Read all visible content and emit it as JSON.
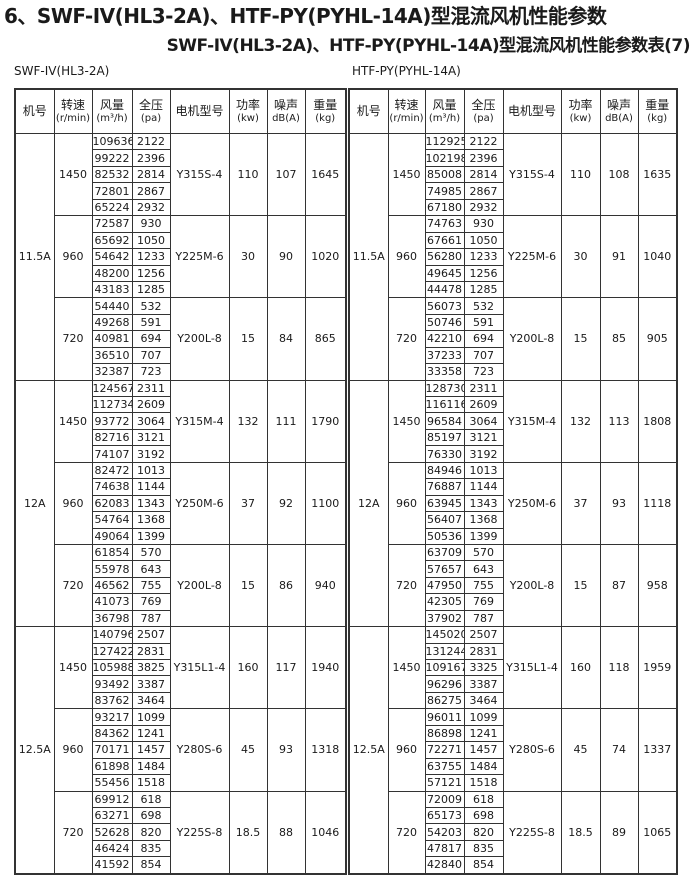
{
  "title": "6、SWF-IV(HL3-2A)、HTF-PY(PYHL-14A)型混流风机性能参数",
  "subtitle": "SWF-IV(HL3-2A)、HTF-PY(PYHL-14A)型混流风机性能参数表(7)",
  "headers": [
    {
      "l1": "机号",
      "l2": ""
    },
    {
      "l1": "转速",
      "l2": "(r/min)"
    },
    {
      "l1": "风量",
      "l2": "(m³/h)"
    },
    {
      "l1": "全压",
      "l2": "(pa)"
    },
    {
      "l1": "电机型号",
      "l2": ""
    },
    {
      "l1": "功率",
      "l2": "(kw)"
    },
    {
      "l1": "噪声",
      "l2": "dB(A)"
    },
    {
      "l1": "重量",
      "l2": "(kg)"
    }
  ],
  "tables": [
    {
      "label": "SWF-IV(HL3-2A)",
      "groups": [
        {
          "fan_no": "11.5A",
          "speeds": [
            {
              "rpm": "1450",
              "motor": "Y315S-4",
              "power": "110",
              "noise": "107",
              "weight": "1645",
              "points": [
                [
                  "109636",
                  "2122"
                ],
                [
                  "99222",
                  "2396"
                ],
                [
                  "82532",
                  "2814"
                ],
                [
                  "72801",
                  "2867"
                ],
                [
                  "65224",
                  "2932"
                ]
              ]
            },
            {
              "rpm": "960",
              "motor": "Y225M-6",
              "power": "30",
              "noise": "90",
              "weight": "1020",
              "points": [
                [
                  "72587",
                  "930"
                ],
                [
                  "65692",
                  "1050"
                ],
                [
                  "54642",
                  "1233"
                ],
                [
                  "48200",
                  "1256"
                ],
                [
                  "43183",
                  "1285"
                ]
              ]
            },
            {
              "rpm": "720",
              "motor": "Y200L-8",
              "power": "15",
              "noise": "84",
              "weight": "865",
              "points": [
                [
                  "54440",
                  "532"
                ],
                [
                  "49268",
                  "591"
                ],
                [
                  "40981",
                  "694"
                ],
                [
                  "36510",
                  "707"
                ],
                [
                  "32387",
                  "723"
                ]
              ]
            }
          ]
        },
        {
          "fan_no": "12A",
          "speeds": [
            {
              "rpm": "1450",
              "motor": "Y315M-4",
              "power": "132",
              "noise": "111",
              "weight": "1790",
              "points": [
                [
                  "124567",
                  "2311"
                ],
                [
                  "112734",
                  "2609"
                ],
                [
                  "93772",
                  "3064"
                ],
                [
                  "82716",
                  "3121"
                ],
                [
                  "74107",
                  "3192"
                ]
              ]
            },
            {
              "rpm": "960",
              "motor": "Y250M-6",
              "power": "37",
              "noise": "92",
              "weight": "1100",
              "points": [
                [
                  "82472",
                  "1013"
                ],
                [
                  "74638",
                  "1144"
                ],
                [
                  "62083",
                  "1343"
                ],
                [
                  "54764",
                  "1368"
                ],
                [
                  "49064",
                  "1399"
                ]
              ]
            },
            {
              "rpm": "720",
              "motor": "Y200L-8",
              "power": "15",
              "noise": "86",
              "weight": "940",
              "points": [
                [
                  "61854",
                  "570"
                ],
                [
                  "55978",
                  "643"
                ],
                [
                  "46562",
                  "755"
                ],
                [
                  "41073",
                  "769"
                ],
                [
                  "36798",
                  "787"
                ]
              ]
            }
          ]
        },
        {
          "fan_no": "12.5A",
          "speeds": [
            {
              "rpm": "1450",
              "motor": "Y315L1-4",
              "power": "160",
              "noise": "117",
              "weight": "1940",
              "points": [
                [
                  "140796",
                  "2507"
                ],
                [
                  "127422",
                  "2831"
                ],
                [
                  "105988",
                  "3825"
                ],
                [
                  "93492",
                  "3387"
                ],
                [
                  "83762",
                  "3464"
                ]
              ]
            },
            {
              "rpm": "960",
              "motor": "Y280S-6",
              "power": "45",
              "noise": "93",
              "weight": "1318",
              "points": [
                [
                  "93217",
                  "1099"
                ],
                [
                  "84362",
                  "1241"
                ],
                [
                  "70171",
                  "1457"
                ],
                [
                  "61898",
                  "1484"
                ],
                [
                  "55456",
                  "1518"
                ]
              ]
            },
            {
              "rpm": "720",
              "motor": "Y225S-8",
              "power": "18.5",
              "noise": "88",
              "weight": "1046",
              "points": [
                [
                  "69912",
                  "618"
                ],
                [
                  "63271",
                  "698"
                ],
                [
                  "52628",
                  "820"
                ],
                [
                  "46424",
                  "835"
                ],
                [
                  "41592",
                  "854"
                ]
              ]
            }
          ]
        }
      ]
    },
    {
      "label": "HTF-PY(PYHL-14A)",
      "groups": [
        {
          "fan_no": "11.5A",
          "speeds": [
            {
              "rpm": "1450",
              "motor": "Y315S-4",
              "power": "110",
              "noise": "108",
              "weight": "1635",
              "points": [
                [
                  "112925",
                  "2122"
                ],
                [
                  "102198",
                  "2396"
                ],
                [
                  "85008",
                  "2814"
                ],
                [
                  "74985",
                  "2867"
                ],
                [
                  "67180",
                  "2932"
                ]
              ]
            },
            {
              "rpm": "960",
              "motor": "Y225M-6",
              "power": "30",
              "noise": "91",
              "weight": "1040",
              "points": [
                [
                  "74763",
                  "930"
                ],
                [
                  "67661",
                  "1050"
                ],
                [
                  "56280",
                  "1233"
                ],
                [
                  "49645",
                  "1256"
                ],
                [
                  "44478",
                  "1285"
                ]
              ]
            },
            {
              "rpm": "720",
              "motor": "Y200L-8",
              "power": "15",
              "noise": "85",
              "weight": "905",
              "points": [
                [
                  "56073",
                  "532"
                ],
                [
                  "50746",
                  "591"
                ],
                [
                  "42210",
                  "694"
                ],
                [
                  "37233",
                  "707"
                ],
                [
                  "33358",
                  "723"
                ]
              ]
            }
          ]
        },
        {
          "fan_no": "12A",
          "speeds": [
            {
              "rpm": "1450",
              "motor": "Y315M-4",
              "power": "132",
              "noise": "113",
              "weight": "1808",
              "points": [
                [
                  "128730",
                  "2311"
                ],
                [
                  "116116",
                  "2609"
                ],
                [
                  "96584",
                  "3064"
                ],
                [
                  "85197",
                  "3121"
                ],
                [
                  "76330",
                  "3192"
                ]
              ]
            },
            {
              "rpm": "960",
              "motor": "Y250M-6",
              "power": "37",
              "noise": "93",
              "weight": "1118",
              "points": [
                [
                  "84946",
                  "1013"
                ],
                [
                  "76887",
                  "1144"
                ],
                [
                  "63945",
                  "1343"
                ],
                [
                  "56407",
                  "1368"
                ],
                [
                  "50536",
                  "1399"
                ]
              ]
            },
            {
              "rpm": "720",
              "motor": "Y200L-8",
              "power": "15",
              "noise": "87",
              "weight": "958",
              "points": [
                [
                  "63709",
                  "570"
                ],
                [
                  "57657",
                  "643"
                ],
                [
                  "47950",
                  "755"
                ],
                [
                  "42305",
                  "769"
                ],
                [
                  "37902",
                  "787"
                ]
              ]
            }
          ]
        },
        {
          "fan_no": "12.5A",
          "speeds": [
            {
              "rpm": "1450",
              "motor": "Y315L1-4",
              "power": "160",
              "noise": "118",
              "weight": "1959",
              "points": [
                [
                  "145020",
                  "2507"
                ],
                [
                  "131244",
                  "2831"
                ],
                [
                  "109167",
                  "3325"
                ],
                [
                  "96296",
                  "3387"
                ],
                [
                  "86275",
                  "3464"
                ]
              ]
            },
            {
              "rpm": "960",
              "motor": "Y280S-6",
              "power": "45",
              "noise": "74",
              "weight": "1337",
              "points": [
                [
                  "96011",
                  "1099"
                ],
                [
                  "86898",
                  "1241"
                ],
                [
                  "72271",
                  "1457"
                ],
                [
                  "63755",
                  "1484"
                ],
                [
                  "57121",
                  "1518"
                ]
              ]
            },
            {
              "rpm": "720",
              "motor": "Y225S-8",
              "power": "18.5",
              "noise": "89",
              "weight": "1065",
              "points": [
                [
                  "72009",
                  "618"
                ],
                [
                  "65173",
                  "698"
                ],
                [
                  "54203",
                  "820"
                ],
                [
                  "47817",
                  "835"
                ],
                [
                  "42840",
                  "854"
                ]
              ]
            }
          ]
        }
      ]
    }
  ]
}
